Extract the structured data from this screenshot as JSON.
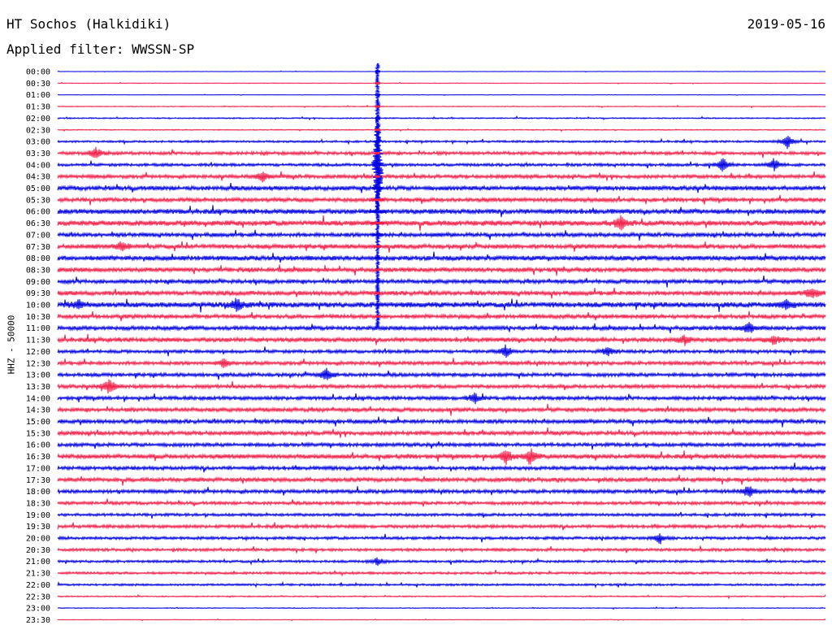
{
  "header": {
    "station": "HT Sochos (Halkidiki)",
    "date": "2019-05-16",
    "filter": "Applied filter: WWSSN-SP"
  },
  "axis": {
    "ylabel": "HHZ - 50000"
  },
  "chart_data": {
    "type": "line",
    "title": "HT Sochos (Halkidiki)",
    "ylabel": "HHZ - 50000",
    "row_labels": [
      "00:00",
      "00:30",
      "01:00",
      "01:30",
      "02:00",
      "02:30",
      "03:00",
      "03:30",
      "04:00",
      "04:30",
      "05:00",
      "05:30",
      "06:00",
      "06:30",
      "07:00",
      "07:30",
      "08:00",
      "08:30",
      "09:00",
      "09:30",
      "10:00",
      "10:30",
      "11:00",
      "11:30",
      "12:00",
      "12:30",
      "13:00",
      "13:30",
      "14:00",
      "14:30",
      "15:00",
      "15:30",
      "16:00",
      "16:30",
      "17:00",
      "17:30",
      "18:00",
      "18:30",
      "19:00",
      "19:30",
      "20:00",
      "20:30",
      "21:00",
      "21:30",
      "22:00",
      "22:30",
      "23:00",
      "23:30"
    ],
    "row_colors": [
      "#0000e0",
      "#f0204a"
    ],
    "noise_level": [
      0.2,
      0.3,
      0.2,
      0.4,
      0.6,
      0.5,
      1.0,
      1.6,
      1.4,
      1.8,
      2.2,
      2.0,
      2.4,
      2.6,
      2.0,
      2.2,
      2.4,
      2.2,
      2.0,
      2.2,
      2.6,
      2.0,
      2.0,
      2.2,
      1.6,
      1.8,
      1.8,
      1.8,
      1.8,
      2.0,
      2.0,
      2.0,
      1.8,
      2.2,
      1.8,
      2.0,
      1.8,
      1.6,
      1.4,
      1.6,
      1.4,
      1.4,
      1.2,
      1.2,
      1.0,
      0.6,
      0.4,
      0.3
    ],
    "earthquake": {
      "row": "00:00",
      "minute_offset": 12.5,
      "spans_to_row": "10:30"
    },
    "events": [
      {
        "row": "03:30",
        "minute": 1.5,
        "amp": 8
      },
      {
        "row": "04:00",
        "minute": 26.0,
        "amp": 10
      },
      {
        "row": "04:00",
        "minute": 28.0,
        "amp": 8
      },
      {
        "row": "04:30",
        "minute": 8.0,
        "amp": 7
      },
      {
        "row": "06:30",
        "minute": 22.0,
        "amp": 9
      },
      {
        "row": "03:00",
        "minute": 28.5,
        "amp": 10
      },
      {
        "row": "07:30",
        "minute": 2.5,
        "amp": 6
      },
      {
        "row": "09:30",
        "minute": 29.5,
        "amp": 8
      },
      {
        "row": "10:00",
        "minute": 0.8,
        "amp": 6
      },
      {
        "row": "10:00",
        "minute": 7.0,
        "amp": 8
      },
      {
        "row": "10:00",
        "minute": 28.5,
        "amp": 6
      },
      {
        "row": "11:00",
        "minute": 27.0,
        "amp": 7
      },
      {
        "row": "11:30",
        "minute": 28.0,
        "amp": 6
      },
      {
        "row": "11:30",
        "minute": 24.5,
        "amp": 6
      },
      {
        "row": "12:00",
        "minute": 17.5,
        "amp": 8
      },
      {
        "row": "12:00",
        "minute": 21.5,
        "amp": 6
      },
      {
        "row": "12:30",
        "minute": 6.5,
        "amp": 6
      },
      {
        "row": "13:00",
        "minute": 10.5,
        "amp": 8
      },
      {
        "row": "13:30",
        "minute": 2.0,
        "amp": 11
      },
      {
        "row": "14:00",
        "minute": 16.3,
        "amp": 6
      },
      {
        "row": "16:30",
        "minute": 17.5,
        "amp": 10
      },
      {
        "row": "16:30",
        "minute": 18.5,
        "amp": 10
      },
      {
        "row": "18:00",
        "minute": 27.0,
        "amp": 8
      },
      {
        "row": "20:00",
        "minute": 23.5,
        "amp": 6
      },
      {
        "row": "21:00",
        "minute": 12.5,
        "amp": 5
      }
    ]
  }
}
